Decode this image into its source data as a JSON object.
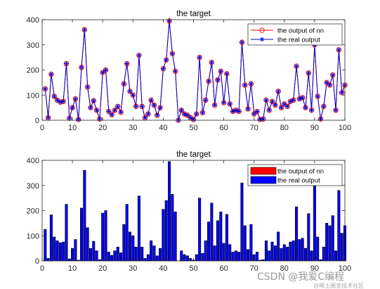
{
  "chart_data": [
    {
      "type": "line",
      "title": "the target",
      "xlim": [
        0,
        100
      ],
      "ylim": [
        0,
        400
      ],
      "xticks": [
        0,
        10,
        20,
        30,
        40,
        50,
        60,
        70,
        80,
        90,
        100
      ],
      "yticks": [
        0,
        100,
        200,
        300,
        400
      ],
      "legend_position": "top-right",
      "grid": false,
      "x": [
        1,
        2,
        3,
        4,
        5,
        6,
        7,
        8,
        9,
        10,
        11,
        12,
        13,
        14,
        15,
        16,
        17,
        18,
        19,
        20,
        21,
        22,
        23,
        24,
        25,
        26,
        27,
        28,
        29,
        30,
        31,
        32,
        33,
        34,
        35,
        36,
        37,
        38,
        39,
        40,
        41,
        42,
        43,
        44,
        45,
        46,
        47,
        48,
        49,
        50,
        51,
        52,
        53,
        54,
        55,
        56,
        57,
        58,
        59,
        60,
        61,
        62,
        63,
        64,
        65,
        66,
        67,
        68,
        69,
        70,
        71,
        72,
        73,
        74,
        75,
        76,
        77,
        78,
        79,
        80,
        81,
        82,
        83,
        84,
        85,
        86,
        87,
        88,
        89,
        90,
        91,
        92,
        93,
        94,
        95,
        96,
        97,
        98,
        99,
        100
      ],
      "series": [
        {
          "name": "the output of nn",
          "color": "#ff0000",
          "marker": "circle",
          "values": [
            125,
            10,
            183,
            95,
            80,
            72,
            75,
            225,
            8,
            50,
            85,
            3,
            210,
            360,
            132,
            50,
            78,
            40,
            5,
            190,
            200,
            35,
            22,
            40,
            55,
            32,
            145,
            225,
            115,
            100,
            55,
            258,
            55,
            10,
            25,
            80,
            60,
            20,
            50,
            205,
            240,
            395,
            265,
            195,
            0,
            40,
            25,
            20,
            10,
            3,
            25,
            250,
            30,
            80,
            155,
            230,
            60,
            160,
            195,
            70,
            185,
            65,
            35,
            40,
            35,
            310,
            140,
            45,
            145,
            25,
            35,
            3,
            5,
            80,
            40,
            75,
            60,
            115,
            50,
            65,
            55,
            75,
            80,
            215,
            85,
            90,
            50,
            188,
            40,
            300,
            95,
            5,
            55,
            150,
            140,
            180,
            40,
            280,
            110,
            140
          ]
        },
        {
          "name": "the real output",
          "color": "#0000cd",
          "marker": "star",
          "values": [
            125,
            10,
            183,
            95,
            80,
            72,
            75,
            225,
            8,
            50,
            85,
            3,
            210,
            360,
            132,
            50,
            78,
            40,
            5,
            190,
            200,
            35,
            22,
            40,
            55,
            32,
            145,
            225,
            115,
            100,
            55,
            258,
            55,
            10,
            25,
            80,
            60,
            20,
            50,
            205,
            240,
            395,
            265,
            195,
            0,
            40,
            25,
            20,
            10,
            3,
            25,
            250,
            30,
            80,
            155,
            230,
            60,
            160,
            195,
            70,
            185,
            65,
            35,
            40,
            35,
            310,
            140,
            45,
            145,
            25,
            35,
            3,
            5,
            80,
            40,
            75,
            60,
            115,
            50,
            65,
            55,
            75,
            80,
            215,
            85,
            90,
            50,
            188,
            40,
            300,
            95,
            5,
            55,
            150,
            140,
            180,
            40,
            280,
            110,
            140
          ]
        }
      ]
    },
    {
      "type": "bar",
      "title": "the target",
      "xlim": [
        0,
        100
      ],
      "ylim": [
        0,
        400
      ],
      "xticks": [
        0,
        10,
        20,
        30,
        40,
        50,
        60,
        70,
        80,
        90,
        100
      ],
      "yticks": [
        0,
        100,
        200,
        300,
        400
      ],
      "legend_position": "top-right",
      "grid": false,
      "x": [
        1,
        2,
        3,
        4,
        5,
        6,
        7,
        8,
        9,
        10,
        11,
        12,
        13,
        14,
        15,
        16,
        17,
        18,
        19,
        20,
        21,
        22,
        23,
        24,
        25,
        26,
        27,
        28,
        29,
        30,
        31,
        32,
        33,
        34,
        35,
        36,
        37,
        38,
        39,
        40,
        41,
        42,
        43,
        44,
        45,
        46,
        47,
        48,
        49,
        50,
        51,
        52,
        53,
        54,
        55,
        56,
        57,
        58,
        59,
        60,
        61,
        62,
        63,
        64,
        65,
        66,
        67,
        68,
        69,
        70,
        71,
        72,
        73,
        74,
        75,
        76,
        77,
        78,
        79,
        80,
        81,
        82,
        83,
        84,
        85,
        86,
        87,
        88,
        89,
        90,
        91,
        92,
        93,
        94,
        95,
        96,
        97,
        98,
        99,
        100
      ],
      "series": [
        {
          "name": "the output of nn",
          "color": "#ff0000",
          "values": [
            125,
            10,
            183,
            95,
            80,
            72,
            75,
            225,
            8,
            50,
            85,
            3,
            210,
            360,
            132,
            50,
            78,
            40,
            5,
            190,
            200,
            35,
            22,
            40,
            55,
            32,
            145,
            225,
            115,
            100,
            55,
            258,
            55,
            10,
            25,
            80,
            60,
            20,
            50,
            205,
            240,
            395,
            265,
            195,
            0,
            40,
            25,
            20,
            10,
            3,
            25,
            250,
            30,
            80,
            155,
            230,
            60,
            160,
            195,
            70,
            185,
            65,
            35,
            40,
            35,
            310,
            140,
            45,
            145,
            25,
            35,
            3,
            5,
            80,
            40,
            75,
            60,
            115,
            50,
            65,
            55,
            75,
            80,
            215,
            85,
            90,
            50,
            188,
            40,
            300,
            95,
            5,
            55,
            150,
            140,
            180,
            40,
            280,
            110,
            140
          ]
        },
        {
          "name": "the real output",
          "color": "#0000ff",
          "values": [
            125,
            10,
            183,
            95,
            80,
            72,
            75,
            225,
            8,
            50,
            85,
            3,
            210,
            360,
            132,
            50,
            78,
            40,
            5,
            190,
            200,
            35,
            22,
            40,
            55,
            32,
            145,
            225,
            115,
            100,
            55,
            258,
            55,
            10,
            25,
            80,
            60,
            20,
            50,
            205,
            240,
            395,
            265,
            195,
            0,
            40,
            25,
            20,
            10,
            3,
            25,
            250,
            30,
            80,
            155,
            230,
            60,
            160,
            195,
            70,
            185,
            65,
            35,
            40,
            35,
            310,
            140,
            45,
            145,
            25,
            35,
            3,
            5,
            80,
            40,
            75,
            60,
            115,
            50,
            65,
            55,
            75,
            80,
            215,
            85,
            90,
            50,
            188,
            40,
            300,
            95,
            5,
            55,
            150,
            140,
            180,
            40,
            280,
            110,
            140
          ]
        }
      ]
    }
  ],
  "watermark": "CSDN @我爱C编程",
  "watermark_small": "@稀土掘金技术社区"
}
